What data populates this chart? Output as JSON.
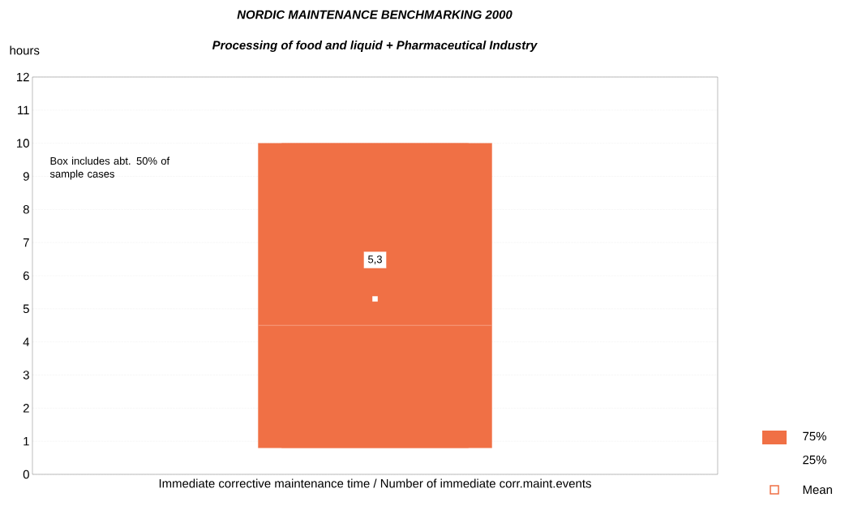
{
  "chart_data": {
    "type": "box",
    "title": "NORDIC MAINTENANCE BENCHMARKING 2000",
    "subtitle": "Processing of food and liquid + Pharmaceutical Industry",
    "ylabel": "hours",
    "categories": [
      "Immediate corrective maintenance time / Number of immediate corr.maint.events"
    ],
    "color": "#f07045",
    "boxes": [
      {
        "low": 0.8,
        "q1": 0.8,
        "median": 4.5,
        "q3": 10,
        "high": 10,
        "mean": 5.3
      }
    ],
    "ylim": [
      0,
      12
    ],
    "yticks": [
      0,
      1,
      2,
      3,
      4,
      5,
      6,
      7,
      8,
      9,
      10,
      11,
      12
    ],
    "grid": "y",
    "annotations": [
      "5,3",
      "Box includes abt. 50% of sample cases",
      "75%",
      "25%",
      "Mean"
    ]
  }
}
